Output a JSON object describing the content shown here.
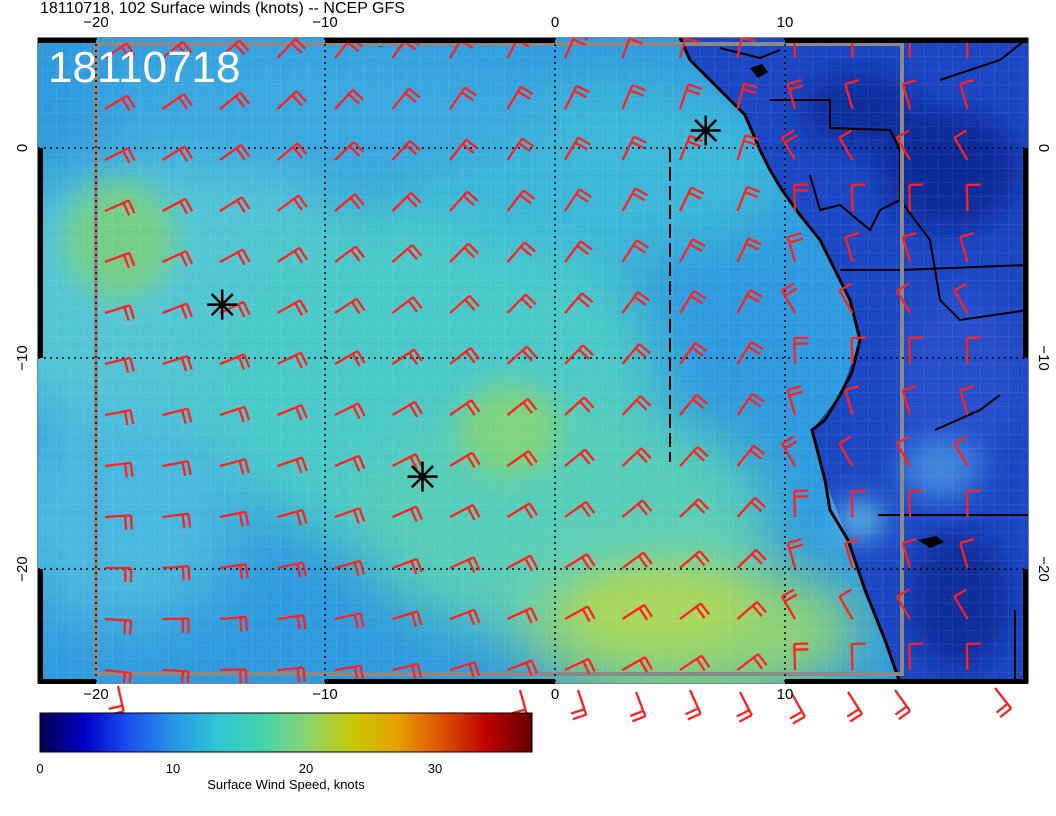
{
  "header": {
    "title": "18110718, 102 Surface winds (knots) -- NCEP GFS",
    "date_stamp": "18110718"
  },
  "axes": {
    "lon_ticks": [
      "−20",
      "−10",
      "0",
      "10"
    ],
    "lat_ticks": [
      "0",
      "−10",
      "−20"
    ]
  },
  "colorbar": {
    "ticks": [
      "0",
      "10",
      "20",
      "30"
    ],
    "label": "Surface Wind Speed, knots",
    "range": [
      0,
      37
    ],
    "stops": [
      "#000050",
      "#0000c8",
      "#1e50f0",
      "#2896e6",
      "#2ec8d2",
      "#46d2aa",
      "#8cd26e",
      "#c8c800",
      "#e6a000",
      "#dc5000",
      "#be0000",
      "#640000"
    ]
  },
  "map": {
    "extent": {
      "lon": [
        -22.5,
        20.5
      ],
      "lat": [
        4.5,
        -25.5
      ]
    },
    "grid": "dotted every 10 degrees",
    "field_colors": {
      "ocean_base": "#3aaee0",
      "strong_band": "#7fd46e",
      "weak_land": "#1d3fb8",
      "coast": "#000000",
      "barb": "#ff2020"
    },
    "storm_markers": [
      {
        "lon": 6.5,
        "lat": 0.2
      },
      {
        "lon": -14.5,
        "lat": -7.9
      },
      {
        "lon": -5.8,
        "lat": -15.9
      }
    ]
  },
  "chart_data": {
    "type": "heatmap",
    "title": "18110718, 102 Surface winds (knots) -- NCEP GFS",
    "xlabel": "",
    "ylabel": "",
    "x_range": [
      -22.5,
      20.5
    ],
    "y_range": [
      -25.5,
      4.5
    ],
    "colorbar_label": "Surface Wind Speed, knots",
    "colorbar_range": [
      0,
      37
    ],
    "colorbar_ticks": [
      0,
      10,
      20,
      30
    ],
    "grid": true,
    "overlay": "wind barbs (red)",
    "markers": [
      {
        "lon": 6.5,
        "lat": 0.2
      },
      {
        "lon": -14.5,
        "lat": -7.9
      },
      {
        "lon": -5.8,
        "lat": -15.9
      }
    ]
  }
}
